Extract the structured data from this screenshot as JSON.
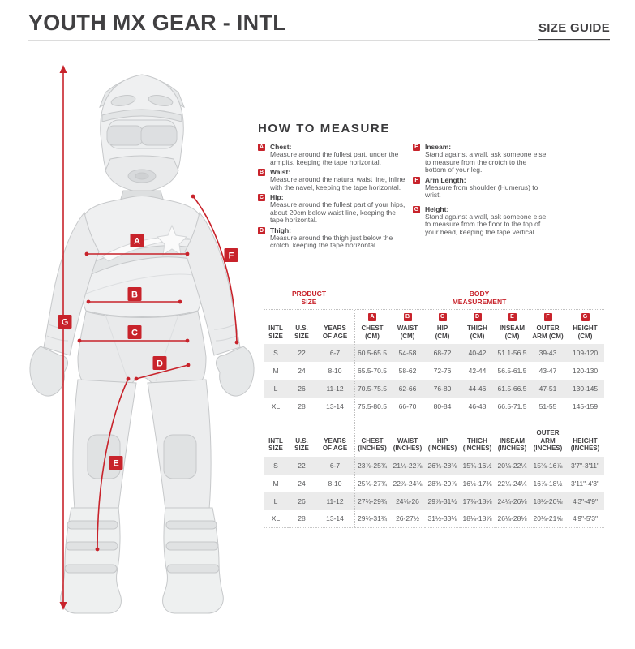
{
  "header": {
    "title": "YOUTH MX GEAR - INTL",
    "size_guide_label": "SIZE GUIDE"
  },
  "figure": {
    "labels": [
      "A",
      "B",
      "C",
      "D",
      "E",
      "F",
      "G"
    ]
  },
  "how_to_measure": {
    "title": "HOW TO MEASURE",
    "items": [
      {
        "letter": "A",
        "name": "Chest:",
        "description": "Measure around the fullest part, under the armpits, keeping the tape horizontal."
      },
      {
        "letter": "B",
        "name": "Waist:",
        "description": "Measure around the natural waist line, inline with the navel, keeping the tape horizontal."
      },
      {
        "letter": "C",
        "name": "Hip:",
        "description": "Measure around the fullest part of your hips, about 20cm below waist line, keeping the tape horizontal."
      },
      {
        "letter": "D",
        "name": "Thigh:",
        "description": "Measure around the thigh just below the crotch, keeping the tape horizontal."
      },
      {
        "letter": "E",
        "name": "Inseam:",
        "description": "Stand against a wall, ask someone else to measure from the crotch to the bottom of your leg."
      },
      {
        "letter": "F",
        "name": "Arm Length:",
        "description": "Measure from shoulder (Humerus) to wrist."
      },
      {
        "letter": "G",
        "name": "Height:",
        "description": "Stand against a wall, ask someone else to measure from the floor to the top of your head, keeping the tape vertical."
      }
    ],
    "columns": {
      "left": [
        "A",
        "B",
        "C",
        "D"
      ],
      "right": [
        "E",
        "F",
        "G"
      ]
    }
  },
  "size_chart": {
    "group_labels": {
      "product": [
        "PRODUCT",
        "SIZE"
      ],
      "body": [
        "BODY",
        "MEASUREMENT"
      ]
    },
    "cm_table": {
      "letters": [
        "A",
        "B",
        "C",
        "D",
        "E",
        "F",
        "G"
      ],
      "headers": [
        [
          "INTL",
          "SIZE"
        ],
        [
          "U.S.",
          "SIZE"
        ],
        [
          "YEARS",
          "OF AGE"
        ],
        [
          "CHEST",
          "(CM)"
        ],
        [
          "WAIST",
          "(CM)"
        ],
        [
          "HIP",
          "(CM)"
        ],
        [
          "THIGH",
          "(CM)"
        ],
        [
          "INSEAM",
          "(CM)"
        ],
        [
          "OUTER",
          "ARM (CM)"
        ],
        [
          "HEIGHT",
          "(CM)"
        ]
      ],
      "rows": [
        [
          "S",
          "22",
          "6-7",
          "60.5-65.5",
          "54-58",
          "68-72",
          "40-42",
          "51.1-56.5",
          "39-43",
          "109-120"
        ],
        [
          "M",
          "24",
          "8-10",
          "65.5-70.5",
          "58-62",
          "72-76",
          "42-44",
          "56.5-61.5",
          "43-47",
          "120-130"
        ],
        [
          "L",
          "26",
          "11-12",
          "70.5-75.5",
          "62-66",
          "76-80",
          "44-46",
          "61.5-66.5",
          "47-51",
          "130-145"
        ],
        [
          "XL",
          "28",
          "13-14",
          "75.5-80.5",
          "66-70",
          "80-84",
          "46-48",
          "66.5-71.5",
          "51-55",
          "145-159"
        ]
      ]
    },
    "inches_table": {
      "headers": [
        [
          "INTL",
          "SIZE"
        ],
        [
          "U.S.",
          "SIZE"
        ],
        [
          "YEARS",
          "OF AGE"
        ],
        [
          "CHEST",
          "(INCHES)"
        ],
        [
          "WAIST",
          "(INCHES)"
        ],
        [
          "HIP",
          "(INCHES)"
        ],
        [
          "THIGH",
          "(INCHES)"
        ],
        [
          "INSEAM",
          "(INCHES)"
        ],
        [
          "OUTER ARM",
          "(INCHES)"
        ],
        [
          "HEIGHT",
          "(INCHES)"
        ]
      ],
      "rows": [
        [
          "S",
          "22",
          "6-7",
          "23⅞-25¾",
          "21¼-22⅞",
          "26¾-28⅜",
          "15¾-16½",
          "20⅛-22¼",
          "15⅜-16⅞",
          "3'7\"-3'11\""
        ],
        [
          "M",
          "24",
          "8-10",
          "25¾-27¾",
          "22⅞-24⅜",
          "28⅜-29⅞",
          "16½-17⅜",
          "22¼-24¼",
          "16⅞-18½",
          "3'11\"-4'3\""
        ],
        [
          "L",
          "26",
          "11-12",
          "27¾-29¾",
          "24⅜-26",
          "29⅞-31½",
          "17⅜-18⅛",
          "24¼-26⅛",
          "18½-20⅛",
          "4'3\"-4'9\""
        ],
        [
          "XL",
          "28",
          "13-14",
          "29¾-31¾",
          "26-27½",
          "31½-33⅛",
          "18⅛-18⅞",
          "26⅛-28⅛",
          "20⅛-21⅝",
          "4'9\"-5'3\""
        ]
      ]
    }
  },
  "colors": {
    "accent_red": "#c8232b",
    "dark_text": "#414042",
    "body_text": "#58595b",
    "row_stripe": "#ebebeb"
  }
}
